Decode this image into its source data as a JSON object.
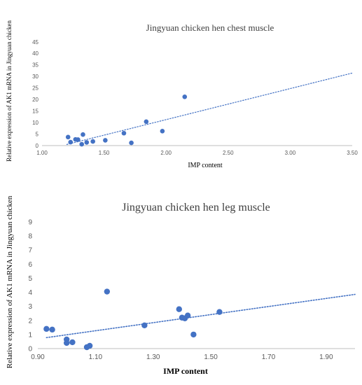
{
  "chart_data": [
    {
      "type": "scatter",
      "title": "Jingyuan  chicken hen chest muscle",
      "xlabel": "IMP content",
      "ylabel": "Relative expression of AK1 mRNA in Jingyuan chicken",
      "xlim": [
        1.0,
        3.5
      ],
      "ylim": [
        0,
        45
      ],
      "x_ticks": [
        "1.00",
        "1.50",
        "2.00",
        "2.50",
        "3.00",
        "3.50"
      ],
      "y_ticks": [
        "0",
        "5",
        "10",
        "15",
        "20",
        "25",
        "30",
        "35",
        "40",
        "45"
      ],
      "grid": false,
      "trendline": {
        "style": "dotted",
        "x": [
          1.2,
          3.5
        ],
        "y": [
          0.5,
          31.5
        ]
      },
      "marker_color": "#4472C4",
      "points": [
        {
          "x": 1.21,
          "y": 3.7
        },
        {
          "x": 1.23,
          "y": 1.5
        },
        {
          "x": 1.27,
          "y": 2.7
        },
        {
          "x": 1.29,
          "y": 2.6
        },
        {
          "x": 1.32,
          "y": 0.6
        },
        {
          "x": 1.33,
          "y": 4.8
        },
        {
          "x": 1.36,
          "y": 1.4
        },
        {
          "x": 1.41,
          "y": 1.8
        },
        {
          "x": 1.51,
          "y": 2.3
        },
        {
          "x": 1.66,
          "y": 5.4
        },
        {
          "x": 1.72,
          "y": 1.2
        },
        {
          "x": 1.84,
          "y": 10.4
        },
        {
          "x": 1.97,
          "y": 6.3
        },
        {
          "x": 2.15,
          "y": 21.2
        }
      ]
    },
    {
      "type": "scatter",
      "title": "Jingyuan  chicken hen leg muscle",
      "xlabel": "IMP content",
      "ylabel": "Relative expression of AK1 mRNA in Jingyuan chicken",
      "xlim": [
        0.9,
        2.0
      ],
      "ylim": [
        0,
        9
      ],
      "x_ticks": [
        "0.90",
        "1.10",
        "1.30",
        "1.50",
        "1.70",
        "1.90"
      ],
      "y_ticks": [
        "0",
        "1",
        "2",
        "3",
        "4",
        "5",
        "6",
        "7",
        "8",
        "9"
      ],
      "grid": false,
      "trendline": {
        "style": "dotted",
        "x": [
          0.93,
          2.0
        ],
        "y": [
          0.78,
          3.85
        ]
      },
      "marker_color": "#4472C4",
      "points": [
        {
          "x": 0.93,
          "y": 1.4
        },
        {
          "x": 0.95,
          "y": 1.35
        },
        {
          "x": 1.0,
          "y": 0.65
        },
        {
          "x": 1.0,
          "y": 0.4
        },
        {
          "x": 1.02,
          "y": 0.45
        },
        {
          "x": 1.07,
          "y": 0.1
        },
        {
          "x": 1.08,
          "y": 0.2
        },
        {
          "x": 1.14,
          "y": 4.05
        },
        {
          "x": 1.27,
          "y": 1.65
        },
        {
          "x": 1.39,
          "y": 2.8
        },
        {
          "x": 1.4,
          "y": 2.2
        },
        {
          "x": 1.41,
          "y": 2.15
        },
        {
          "x": 1.42,
          "y": 2.35
        },
        {
          "x": 1.44,
          "y": 1.0
        },
        {
          "x": 1.53,
          "y": 2.6
        }
      ]
    }
  ]
}
